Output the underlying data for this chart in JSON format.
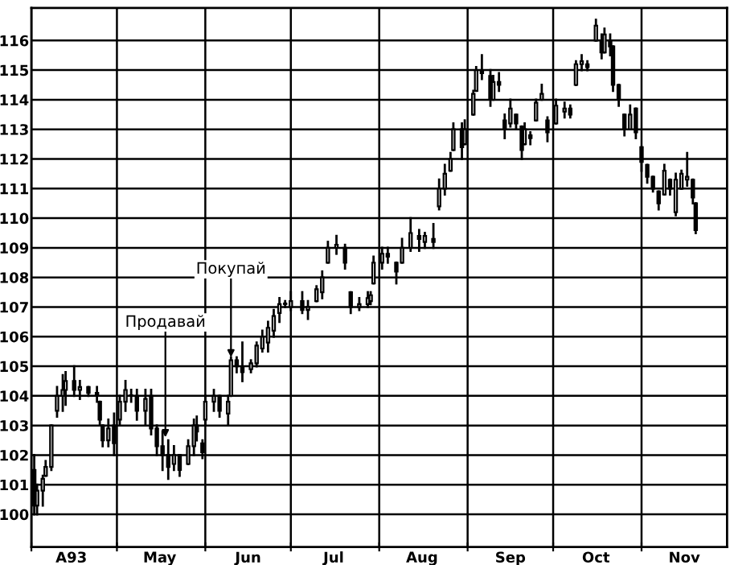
{
  "chart_data": {
    "type": "candlestick",
    "color": "#000000",
    "x": [
      "1993-04-02",
      "1993-04-03",
      "1993-04-05",
      "1993-04-06",
      "1993-04-08",
      "1993-04-10",
      "1993-04-12",
      "1993-04-13",
      "1993-04-16",
      "1993-04-18",
      "1993-04-21",
      "1993-04-24",
      "1993-04-25",
      "1993-04-26",
      "1993-04-28",
      "1993-04-30",
      "1993-05-02",
      "1993-05-04",
      "1993-05-06",
      "1993-05-08",
      "1993-05-11",
      "1993-05-13",
      "1993-05-15",
      "1993-05-17",
      "1993-05-19",
      "1993-05-21",
      "1993-05-23",
      "1993-05-26",
      "1993-05-28",
      "1993-05-29",
      "1993-05-31",
      "1993-06-01",
      "1993-06-04",
      "1993-06-06",
      "1993-06-09",
      "1993-06-10",
      "1993-06-12",
      "1993-06-14",
      "1993-06-17",
      "1993-06-19",
      "1993-06-21",
      "1993-06-23",
      "1993-06-25",
      "1993-06-27",
      "1993-06-29",
      "1993-07-01",
      "1993-07-05",
      "1993-07-07",
      "1993-07-10",
      "1993-07-12",
      "1993-07-14",
      "1993-07-17",
      "1993-07-20",
      "1993-07-22",
      "1993-07-25",
      "1993-07-28",
      "1993-07-29",
      "1993-07-30",
      "1993-08-02",
      "1993-08-04",
      "1993-08-07",
      "1993-08-09",
      "1993-08-12",
      "1993-08-15",
      "1993-08-17",
      "1993-08-20",
      "1993-08-22",
      "1993-08-24",
      "1993-08-26",
      "1993-08-27",
      "1993-08-30",
      "1993-08-31",
      "1993-09-03",
      "1993-09-04",
      "1993-09-06",
      "1993-09-09",
      "1993-09-10",
      "1993-09-12",
      "1993-09-14",
      "1993-09-16",
      "1993-09-18",
      "1993-09-20",
      "1993-09-21",
      "1993-09-23",
      "1993-09-25",
      "1993-09-27",
      "1993-09-29",
      "1993-10-02",
      "1993-10-05",
      "1993-10-07",
      "1993-10-09",
      "1993-10-11",
      "1993-10-13",
      "1993-10-16",
      "1993-10-18",
      "1993-10-19",
      "1993-10-21",
      "1993-10-22",
      "1993-10-24",
      "1993-10-26",
      "1993-10-28",
      "1993-10-30",
      "1993-11-01",
      "1993-11-03",
      "1993-11-05",
      "1993-11-07",
      "1993-11-09",
      "1993-11-11",
      "1993-11-13",
      "1993-11-15",
      "1993-11-17",
      "1993-11-19",
      "1993-11-20"
    ],
    "ohlc": [
      [
        101.5,
        102.0,
        100.0,
        100.3
      ],
      [
        100.3,
        101.0,
        100.0,
        100.8
      ],
      [
        100.8,
        101.3,
        100.3,
        101.2
      ],
      [
        101.3,
        101.8,
        101.3,
        101.6
      ],
      [
        101.6,
        103.0,
        101.5,
        103.0
      ],
      [
        103.5,
        104.3,
        103.3,
        104.0
      ],
      [
        104.0,
        104.7,
        103.5,
        104.2
      ],
      [
        104.2,
        104.8,
        103.7,
        104.5
      ],
      [
        104.5,
        105.0,
        104.0,
        104.2
      ],
      [
        104.2,
        104.5,
        103.9,
        104.3
      ],
      [
        104.3,
        104.3,
        104.0,
        104.1
      ],
      [
        104.1,
        104.3,
        103.8,
        104.0
      ],
      [
        103.8,
        103.8,
        103.0,
        103.2
      ],
      [
        103.0,
        103.0,
        102.3,
        102.5
      ],
      [
        102.5,
        103.2,
        102.3,
        102.9
      ],
      [
        103.0,
        103.4,
        102.0,
        102.4
      ],
      [
        103.2,
        104.0,
        103.0,
        103.8
      ],
      [
        103.8,
        104.5,
        103.5,
        104.2
      ],
      [
        104.0,
        104.2,
        103.8,
        104.0
      ],
      [
        104.0,
        104.2,
        103.2,
        103.5
      ],
      [
        103.5,
        104.2,
        103.0,
        103.9
      ],
      [
        104.0,
        104.2,
        102.7,
        102.9
      ],
      [
        102.9,
        103.0,
        102.0,
        102.3
      ],
      [
        102.3,
        102.8,
        101.5,
        102.0
      ],
      [
        102.0,
        102.5,
        101.2,
        101.6
      ],
      [
        101.7,
        102.3,
        101.5,
        102.0
      ],
      [
        102.0,
        102.0,
        101.3,
        101.5
      ],
      [
        101.7,
        102.5,
        101.7,
        102.3
      ],
      [
        102.3,
        103.2,
        102.0,
        103.0
      ],
      [
        103.0,
        103.3,
        102.5,
        102.8
      ],
      [
        102.4,
        102.5,
        101.9,
        102.1
      ],
      [
        103.2,
        104.0,
        103.0,
        103.8
      ],
      [
        103.8,
        104.2,
        103.5,
        104.0
      ],
      [
        104.0,
        104.0,
        103.3,
        103.5
      ],
      [
        103.4,
        104.0,
        103.0,
        103.8
      ],
      [
        104.0,
        105.3,
        104.0,
        105.2
      ],
      [
        105.2,
        105.3,
        104.8,
        105.0
      ],
      [
        105.0,
        105.8,
        104.5,
        104.8
      ],
      [
        104.9,
        105.2,
        104.8,
        105.1
      ],
      [
        105.1,
        105.8,
        105.0,
        105.7
      ],
      [
        105.6,
        106.2,
        105.5,
        106.0
      ],
      [
        105.8,
        106.5,
        105.5,
        106.3
      ],
      [
        106.2,
        106.9,
        106.0,
        106.7
      ],
      [
        106.8,
        107.3,
        106.5,
        107.1
      ],
      [
        107.1,
        107.2,
        107.0,
        107.1
      ],
      [
        107.0,
        107.5,
        106.9,
        107.2
      ],
      [
        107.2,
        107.5,
        106.8,
        106.9
      ],
      [
        106.9,
        107.2,
        106.6,
        107.0
      ],
      [
        107.2,
        107.7,
        107.2,
        107.6
      ],
      [
        107.5,
        108.2,
        107.3,
        108.0
      ],
      [
        108.5,
        109.2,
        108.5,
        109.0
      ],
      [
        109.0,
        109.4,
        108.8,
        109.1
      ],
      [
        109.0,
        109.1,
        108.3,
        108.5
      ],
      [
        107.5,
        107.5,
        106.8,
        107.0
      ],
      [
        107.0,
        107.3,
        106.9,
        107.1
      ],
      [
        107.1,
        107.5,
        107.0,
        107.3
      ],
      [
        107.2,
        107.5,
        107.1,
        107.4
      ],
      [
        107.8,
        108.7,
        107.8,
        108.5
      ],
      [
        108.5,
        109.0,
        108.3,
        108.8
      ],
      [
        108.8,
        109.0,
        108.5,
        108.7
      ],
      [
        108.5,
        108.5,
        107.8,
        108.2
      ],
      [
        108.5,
        109.3,
        108.5,
        109.0
      ],
      [
        109.0,
        110.0,
        108.9,
        109.5
      ],
      [
        109.4,
        109.6,
        108.9,
        109.3
      ],
      [
        109.2,
        109.5,
        109.0,
        109.4
      ],
      [
        109.3,
        109.8,
        109.0,
        109.2
      ],
      [
        110.4,
        111.3,
        110.3,
        111.0
      ],
      [
        111.0,
        111.8,
        110.8,
        111.5
      ],
      [
        111.6,
        112.2,
        111.6,
        112.0
      ],
      [
        112.3,
        113.2,
        112.3,
        113.0
      ],
      [
        113.0,
        113.2,
        112.0,
        112.4
      ],
      [
        112.5,
        113.3,
        112.5,
        113.0
      ],
      [
        113.5,
        114.3,
        113.5,
        114.2
      ],
      [
        114.3,
        115.1,
        114.3,
        115.0
      ],
      [
        115.0,
        115.5,
        114.7,
        114.9
      ],
      [
        114.8,
        115.0,
        113.8,
        114.0
      ],
      [
        114.0,
        114.8,
        114.0,
        114.6
      ],
      [
        114.6,
        114.9,
        114.3,
        114.5
      ],
      [
        113.3,
        113.5,
        112.7,
        113.0
      ],
      [
        113.2,
        114.0,
        113.1,
        113.7
      ],
      [
        113.5,
        113.5,
        113.0,
        113.2
      ],
      [
        113.1,
        113.1,
        112.0,
        112.3
      ],
      [
        112.5,
        113.2,
        112.5,
        113.0
      ],
      [
        112.8,
        112.9,
        112.5,
        112.7
      ],
      [
        113.3,
        114.0,
        113.3,
        113.9
      ],
      [
        114.0,
        114.5,
        114.0,
        114.2
      ],
      [
        113.3,
        113.4,
        112.6,
        112.9
      ],
      [
        113.2,
        114.0,
        113.2,
        113.8
      ],
      [
        113.6,
        113.9,
        113.4,
        113.7
      ],
      [
        113.7,
        113.8,
        113.4,
        113.5
      ],
      [
        114.5,
        115.3,
        114.5,
        115.2
      ],
      [
        115.2,
        115.5,
        115.0,
        115.3
      ],
      [
        115.2,
        115.3,
        115.0,
        115.1
      ],
      [
        116.0,
        116.7,
        116.0,
        116.5
      ],
      [
        116.0,
        116.2,
        115.4,
        115.6
      ],
      [
        115.6,
        116.4,
        115.6,
        116.2
      ],
      [
        116.0,
        116.2,
        115.5,
        115.8
      ],
      [
        115.8,
        115.8,
        114.3,
        114.5
      ],
      [
        114.5,
        114.5,
        113.8,
        114.0
      ],
      [
        113.5,
        113.5,
        112.8,
        113.0
      ],
      [
        113.0,
        113.8,
        113.0,
        113.5
      ],
      [
        113.7,
        113.7,
        112.7,
        112.9
      ],
      [
        112.4,
        112.4,
        111.6,
        111.9
      ],
      [
        111.8,
        111.8,
        111.2,
        111.4
      ],
      [
        111.4,
        111.4,
        110.9,
        111.0
      ],
      [
        110.9,
        110.9,
        110.3,
        110.5
      ],
      [
        110.8,
        111.8,
        110.8,
        111.6
      ],
      [
        111.3,
        111.3,
        110.8,
        111.0
      ],
      [
        110.2,
        111.5,
        110.1,
        111.3
      ],
      [
        111.0,
        111.6,
        111.0,
        111.5
      ],
      [
        111.3,
        112.2,
        111.1,
        111.4
      ],
      [
        111.3,
        111.3,
        110.5,
        110.7
      ],
      [
        110.5,
        110.5,
        109.5,
        109.6
      ]
    ],
    "xlim": [
      "1993-04-01",
      "1993-12-01"
    ],
    "xticks": [
      {
        "value": "1993-04-01",
        "label": null
      },
      {
        "value": "1993-04-15",
        "label": "A93"
      },
      {
        "value": "1993-05-01",
        "label": null
      },
      {
        "value": "1993-05-16",
        "label": "May"
      },
      {
        "value": "1993-06-01",
        "label": null
      },
      {
        "value": "1993-06-16",
        "label": "Jun"
      },
      {
        "value": "1993-07-01",
        "label": null
      },
      {
        "value": "1993-07-16",
        "label": "Jul"
      },
      {
        "value": "1993-08-01",
        "label": null
      },
      {
        "value": "1993-08-16",
        "label": "Aug"
      },
      {
        "value": "1993-09-01",
        "label": null
      },
      {
        "value": "1993-09-16",
        "label": "Sep"
      },
      {
        "value": "1993-10-01",
        "label": null
      },
      {
        "value": "1993-10-16",
        "label": "Oct"
      },
      {
        "value": "1993-11-01",
        "label": null
      },
      {
        "value": "1993-11-16",
        "label": "Nov"
      }
    ],
    "ylim": [
      98.9,
      117.1
    ],
    "yticks": [
      100,
      101,
      102,
      103,
      104,
      105,
      106,
      107,
      108,
      109,
      110,
      111,
      112,
      113,
      114,
      115,
      116
    ],
    "grid": true,
    "annotations": [
      {
        "text": "Продавай",
        "x": "1993-05-18",
        "y": 102.6
      },
      {
        "text": "Покупай",
        "x": "1993-06-10",
        "y": 105.3
      }
    ]
  }
}
